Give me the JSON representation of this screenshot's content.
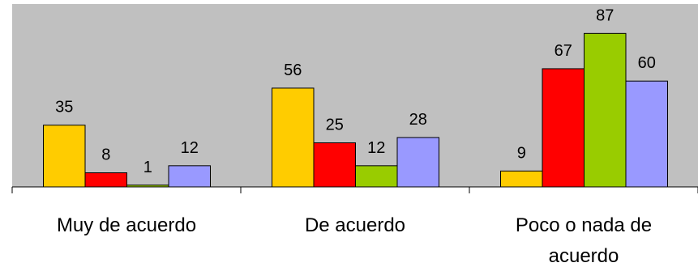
{
  "chart_data": {
    "type": "bar",
    "categories": [
      "Muy de acuerdo",
      "De acuerdo",
      "Poco o nada de acuerdo"
    ],
    "category_lines": [
      [
        "Muy de acuerdo"
      ],
      [
        "De acuerdo"
      ],
      [
        "Poco o nada de",
        "acuerdo"
      ]
    ],
    "series": [
      {
        "values": [
          35,
          56,
          9
        ],
        "color": "#FFCC00"
      },
      {
        "values": [
          8,
          25,
          67
        ],
        "color": "#FF0000"
      },
      {
        "values": [
          1,
          12,
          87
        ],
        "color": "#99CC00"
      },
      {
        "values": [
          12,
          28,
          60
        ],
        "color": "#9999FF"
      }
    ],
    "ylim": [
      0,
      100
    ],
    "plot_background": "#C0C0C0",
    "grid": false,
    "legend": "none",
    "title": "",
    "xlabel": "",
    "ylabel": ""
  }
}
